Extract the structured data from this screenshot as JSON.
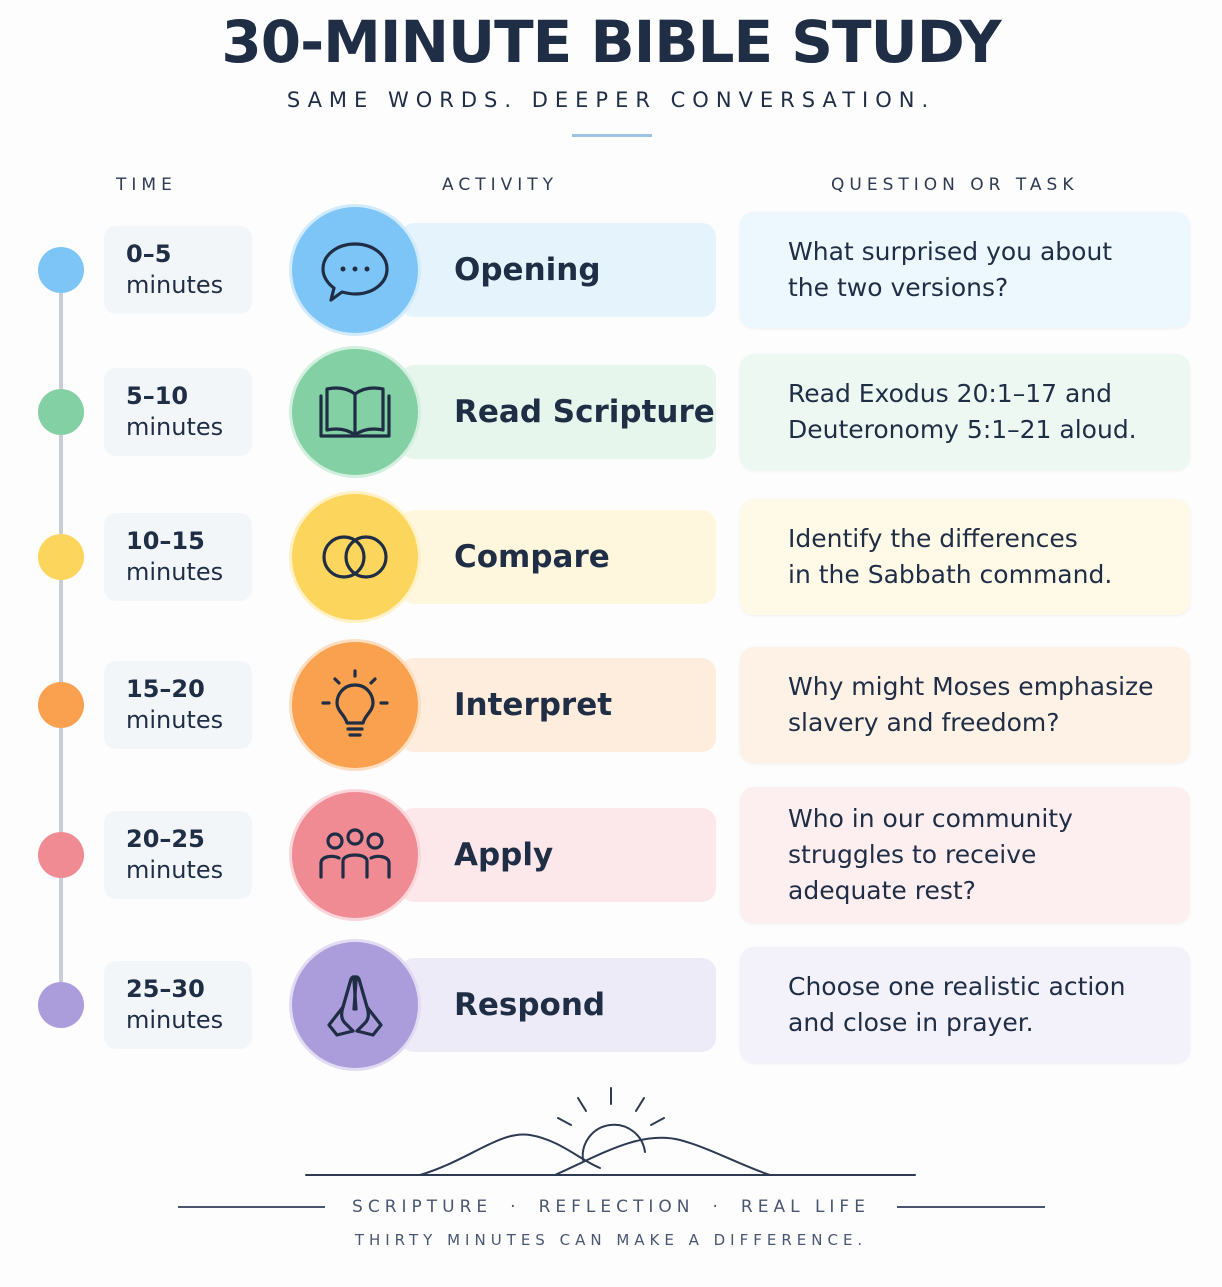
{
  "header": {
    "title": "30-MINUTE BIBLE STUDY",
    "subtitle": "SAME WORDS. DEEPER CONVERSATION."
  },
  "columns": [
    "TIME",
    "ACTIVITY",
    "QUESTION OR TASK"
  ],
  "rows": [
    {
      "time": "0–5",
      "unit": "minutes",
      "activity": "Opening",
      "question": [
        "What surprised you about",
        "the two versions?"
      ],
      "color": "#7cc5f6"
    },
    {
      "time": "5–10",
      "unit": "minutes",
      "activity": "Read Scripture",
      "question": [
        "Read Exodus 20:1–17 and",
        "Deuteronomy 5:1–21 aloud."
      ],
      "color": "#82d0a4"
    },
    {
      "time": "10–15",
      "unit": "minutes",
      "activity": "Compare",
      "question": [
        "Identify the differences",
        "in the Sabbath command."
      ],
      "color": "#fcd65c"
    },
    {
      "time": "15–20",
      "unit": "minutes",
      "activity": "Interpret",
      "question": [
        "Why might Moses emphasize",
        "slavery and freedom?"
      ],
      "color": "#f9a14f"
    },
    {
      "time": "20–25",
      "unit": "minutes",
      "activity": "Apply",
      "question": [
        "Who in our community",
        "struggles to receive",
        "adequate rest?"
      ],
      "color": "#f08b94"
    },
    {
      "time": "25–30",
      "unit": "minutes",
      "activity": "Respond",
      "question": [
        "Choose one realistic action",
        "and close in prayer."
      ],
      "color": "#ab9cdb"
    }
  ],
  "footer": {
    "tagline": [
      "SCRIPTURE",
      "REFLECTION",
      "REAL LIFE"
    ],
    "note": "THIRTY MINUTES CAN MAKE A DIFFERENCE."
  }
}
